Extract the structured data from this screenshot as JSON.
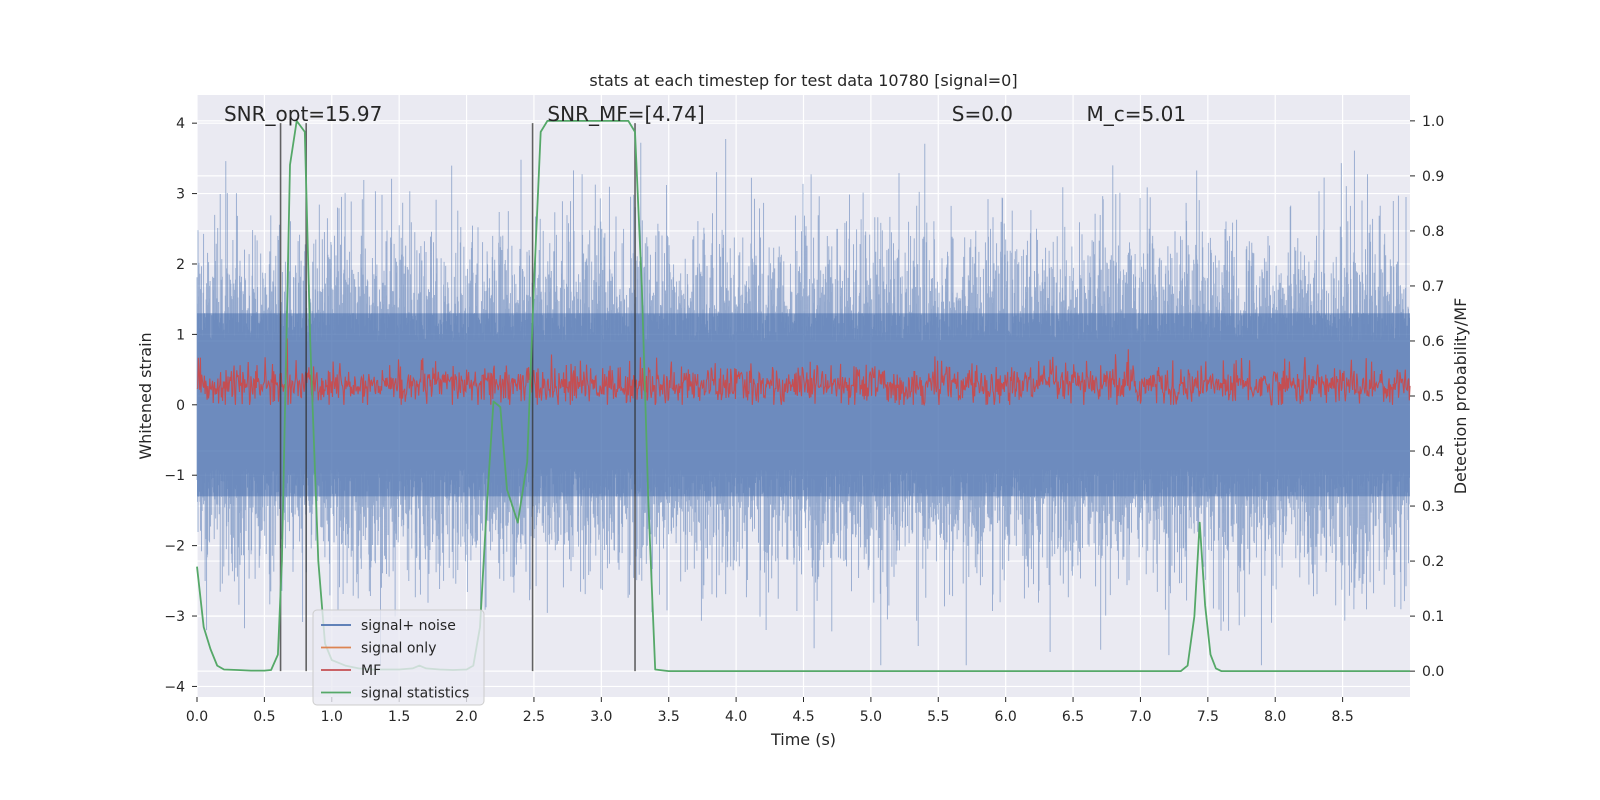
{
  "chart_data": {
    "type": "line",
    "title": "stats at each timestep for test data 10780 [signal=0]",
    "xlabel": "Time (s)",
    "ylabel": "Whitened strain",
    "y2label": "Detection probability/MF",
    "xlim": [
      0.0,
      9.0
    ],
    "ylim": [
      -4.15,
      4.4
    ],
    "y2lim": [
      -0.047,
      1.047
    ],
    "xticks": [
      0.0,
      0.5,
      1.0,
      1.5,
      2.0,
      2.5,
      3.0,
      3.5,
      4.0,
      4.5,
      5.0,
      5.5,
      6.0,
      6.5,
      7.0,
      7.5,
      8.0,
      8.5
    ],
    "xtick_labels": [
      "0.0",
      "0.5",
      "1.0",
      "1.5",
      "2.0",
      "2.5",
      "3.0",
      "3.5",
      "4.0",
      "4.5",
      "5.0",
      "5.5",
      "6.0",
      "6.5",
      "7.0",
      "7.5",
      "8.0",
      "8.5"
    ],
    "yticks": [
      -4,
      -3,
      -2,
      -1,
      0,
      1,
      2,
      3,
      4
    ],
    "ytick_labels": [
      "−4",
      "−3",
      "−2",
      "−1",
      "0",
      "1",
      "2",
      "3",
      "4"
    ],
    "y2ticks": [
      0.0,
      0.1,
      0.2,
      0.3,
      0.4,
      0.5,
      0.6,
      0.7,
      0.8,
      0.9,
      1.0
    ],
    "y2tick_labels": [
      "0.0",
      "0.1",
      "0.2",
      "0.3",
      "0.4",
      "0.5",
      "0.6",
      "0.7",
      "0.8",
      "0.9",
      "1.0"
    ],
    "grid": true,
    "annotations": [
      {
        "text": "SNR_opt=15.97",
        "x": 0.2
      },
      {
        "text": "SNR_MF=[4.74]",
        "x": 2.6
      },
      {
        "text": "S=0.0",
        "x": 5.6
      },
      {
        "text": "M_c=5.01",
        "x": 6.6
      }
    ],
    "vlines": [
      0.62,
      0.81,
      2.49,
      3.25
    ],
    "legend": {
      "placement": "lower-left",
      "entries": [
        {
          "label": "signal+ noise",
          "color": "#4c72b0"
        },
        {
          "label": "signal only",
          "color": "#dd8452"
        },
        {
          "label": "MF",
          "color": "#c44e52"
        },
        {
          "label": "signal statistics",
          "color": "#55a868"
        }
      ]
    },
    "series": [
      {
        "name": "signal+ noise",
        "axis": "left",
        "description_range": [
          -3.7,
          3.8
        ],
        "color": "#4c72b0",
        "note": "dense noise trace, envelope roughly -2.3 to 2.3 with peaks up to about 3.8"
      },
      {
        "name": "MF",
        "axis": "left",
        "color": "#c44e52",
        "note": "dense trace between about 0 and 1.0"
      },
      {
        "name": "signal statistics",
        "axis": "right",
        "color": "#55a868",
        "x": [
          0.0,
          0.05,
          0.1,
          0.15,
          0.2,
          0.3,
          0.4,
          0.5,
          0.55,
          0.6,
          0.63,
          0.69,
          0.74,
          0.8,
          0.84,
          0.9,
          0.95,
          1.0,
          1.1,
          1.2,
          1.3,
          1.4,
          1.5,
          1.6,
          1.65,
          1.7,
          1.8,
          1.9,
          2.0,
          2.05,
          2.1,
          2.15,
          2.2,
          2.25,
          2.3,
          2.38,
          2.45,
          2.5,
          2.55,
          2.6,
          2.7,
          2.8,
          3.0,
          3.2,
          3.25,
          3.3,
          3.35,
          3.4,
          3.5,
          4.0,
          5.0,
          6.0,
          7.0,
          7.3,
          7.35,
          7.4,
          7.44,
          7.48,
          7.52,
          7.56,
          7.6,
          8.0,
          8.5,
          9.0
        ],
        "values": [
          0.19,
          0.08,
          0.04,
          0.01,
          0.003,
          0.002,
          0.001,
          0.001,
          0.002,
          0.03,
          0.2,
          0.92,
          1.0,
          0.98,
          0.6,
          0.2,
          0.05,
          0.02,
          0.01,
          0.005,
          0.003,
          0.003,
          0.003,
          0.005,
          0.01,
          0.005,
          0.003,
          0.002,
          0.003,
          0.01,
          0.08,
          0.3,
          0.49,
          0.48,
          0.33,
          0.27,
          0.38,
          0.7,
          0.98,
          1.0,
          1.0,
          1.0,
          1.0,
          1.0,
          0.98,
          0.7,
          0.3,
          0.003,
          0.0,
          0.0,
          0.0,
          0.0,
          0.0,
          0.0,
          0.01,
          0.1,
          0.27,
          0.12,
          0.03,
          0.005,
          0.0,
          0.0,
          0.0,
          0.0
        ]
      }
    ]
  }
}
